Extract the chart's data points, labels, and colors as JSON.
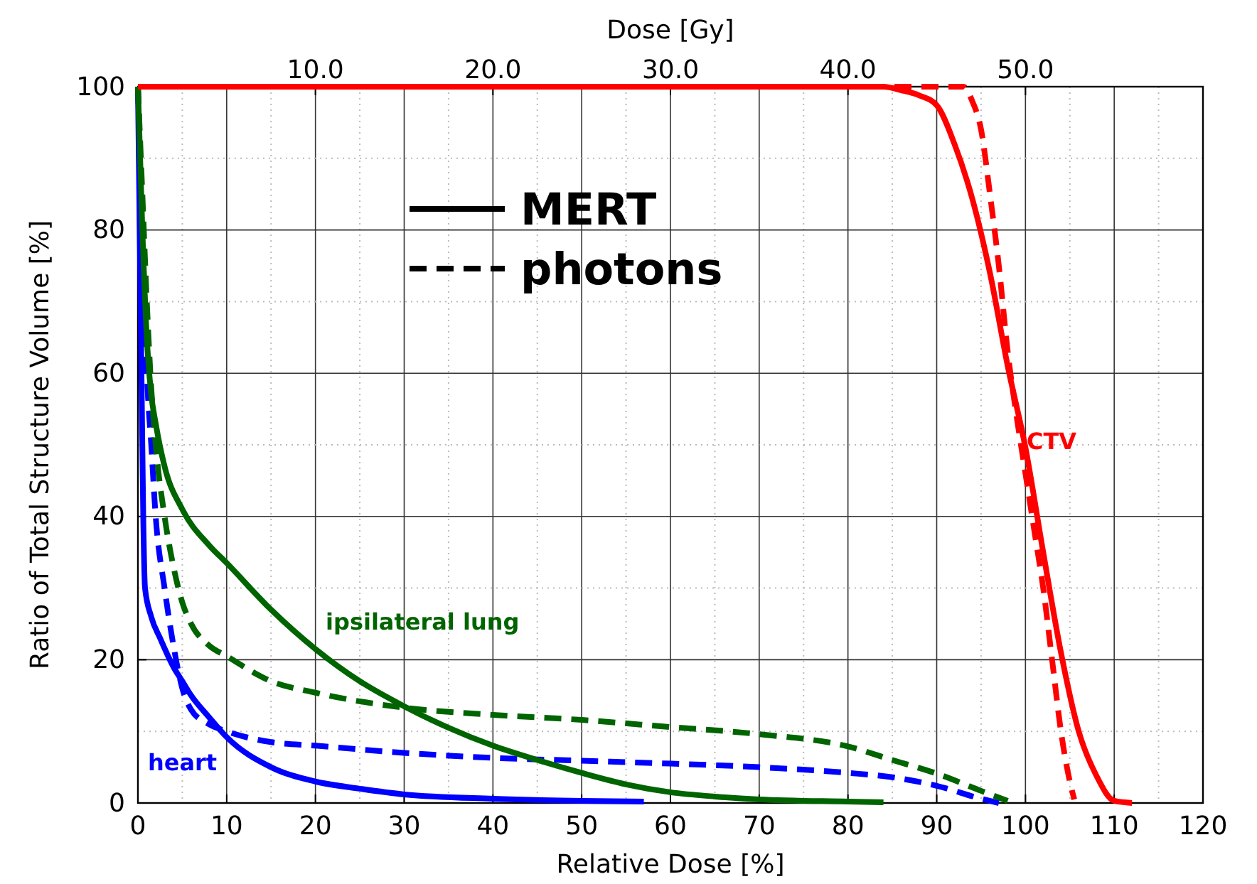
{
  "chart_data": {
    "type": "line",
    "xlabel": "Relative Dose [%]",
    "ylabel": "Ratio of Total Structure Volume [%]",
    "x2label": "Dose [Gy]",
    "xlim": [
      0,
      120
    ],
    "xticks": [
      0,
      10,
      20,
      30,
      40,
      50,
      60,
      70,
      80,
      90,
      100,
      110,
      120
    ],
    "x2lim": [
      0,
      60
    ],
    "x2ticks": [
      {
        "value": 10,
        "label": "10.0"
      },
      {
        "value": 20,
        "label": "20.0"
      },
      {
        "value": 30,
        "label": "30.0"
      },
      {
        "value": 40,
        "label": "40.0"
      },
      {
        "value": 50,
        "label": "50.0"
      }
    ],
    "ylim": [
      0,
      100
    ],
    "yticks": [
      0,
      20,
      40,
      60,
      80,
      100
    ],
    "grid": true,
    "marker": "none",
    "annotations": [
      "MERT",
      "photons",
      "heart",
      "ipsilateral lung",
      "CTV"
    ],
    "series": [
      {
        "color": "#0000ff",
        "line_style": "solid",
        "x": [
          0,
          0.2,
          0.4,
          0.6,
          0.8,
          1.5,
          2.5,
          4,
          5,
          6,
          8,
          10,
          15,
          20,
          25,
          30,
          40,
          50,
          57
        ],
        "values": [
          100,
          80,
          60,
          40,
          30,
          26,
          23,
          19,
          17,
          15,
          12,
          9.2,
          5,
          3,
          2,
          1.2,
          0.6,
          0.3,
          0.2
        ]
      },
      {
        "color": "#0000ff",
        "line_style": "dashed",
        "x": [
          0,
          0.5,
          1,
          1.5,
          2,
          3,
          4,
          5,
          6,
          8,
          10,
          15,
          20,
          30,
          40,
          50,
          60,
          70,
          80,
          85,
          90,
          95,
          97
        ],
        "values": [
          100,
          80,
          60,
          50,
          40,
          30,
          22,
          16,
          13,
          11,
          10,
          8.5,
          8,
          7,
          6.3,
          5.9,
          5.5,
          5,
          4.2,
          3.6,
          2.4,
          0.6,
          0
        ]
      },
      {
        "color": "#006400",
        "line_style": "solid",
        "x": [
          0,
          0.5,
          1,
          1.5,
          2,
          3,
          5,
          8,
          10,
          15,
          20,
          25,
          30,
          35,
          40,
          45,
          50,
          55,
          60,
          65,
          70,
          80,
          84
        ],
        "values": [
          100,
          80,
          65,
          57,
          53,
          47,
          41,
          36,
          33.5,
          27,
          21.5,
          17,
          13.5,
          10.5,
          8,
          6,
          4.2,
          2.6,
          1.5,
          0.9,
          0.5,
          0.2,
          0.1
        ]
      },
      {
        "color": "#006400",
        "line_style": "dashed",
        "x": [
          0,
          0.5,
          1,
          1.5,
          2,
          3,
          4,
          5,
          6,
          8,
          10,
          15,
          20,
          30,
          40,
          50,
          60,
          70,
          80,
          85,
          90,
          95,
          98
        ],
        "values": [
          100,
          85,
          70,
          58,
          50,
          40,
          33,
          28,
          25,
          22,
          20.5,
          17,
          15.4,
          13.3,
          12.3,
          11.6,
          10.6,
          9.6,
          7.9,
          6,
          4.1,
          1.7,
          0.3
        ]
      },
      {
        "color": "#ff0000",
        "line_style": "solid",
        "x": [
          0,
          84,
          86,
          88,
          90,
          92,
          94,
          96,
          98,
          100,
          102,
          104,
          106,
          108,
          110,
          112
        ],
        "values": [
          100,
          100,
          99.5,
          98.8,
          97.4,
          92,
          84.4,
          74,
          61,
          49.6,
          35,
          21,
          10,
          3.8,
          0.3,
          0
        ]
      },
      {
        "color": "#ff0000",
        "line_style": "dashed",
        "x": [
          0,
          93,
          94,
          95,
          96,
          97,
          98,
          99,
          100,
          101,
          102,
          103,
          104,
          105,
          105.5
        ],
        "values": [
          100,
          100,
          98,
          94,
          85,
          75,
          63,
          54,
          46,
          38,
          30,
          20,
          10,
          3,
          0.5
        ]
      }
    ]
  }
}
